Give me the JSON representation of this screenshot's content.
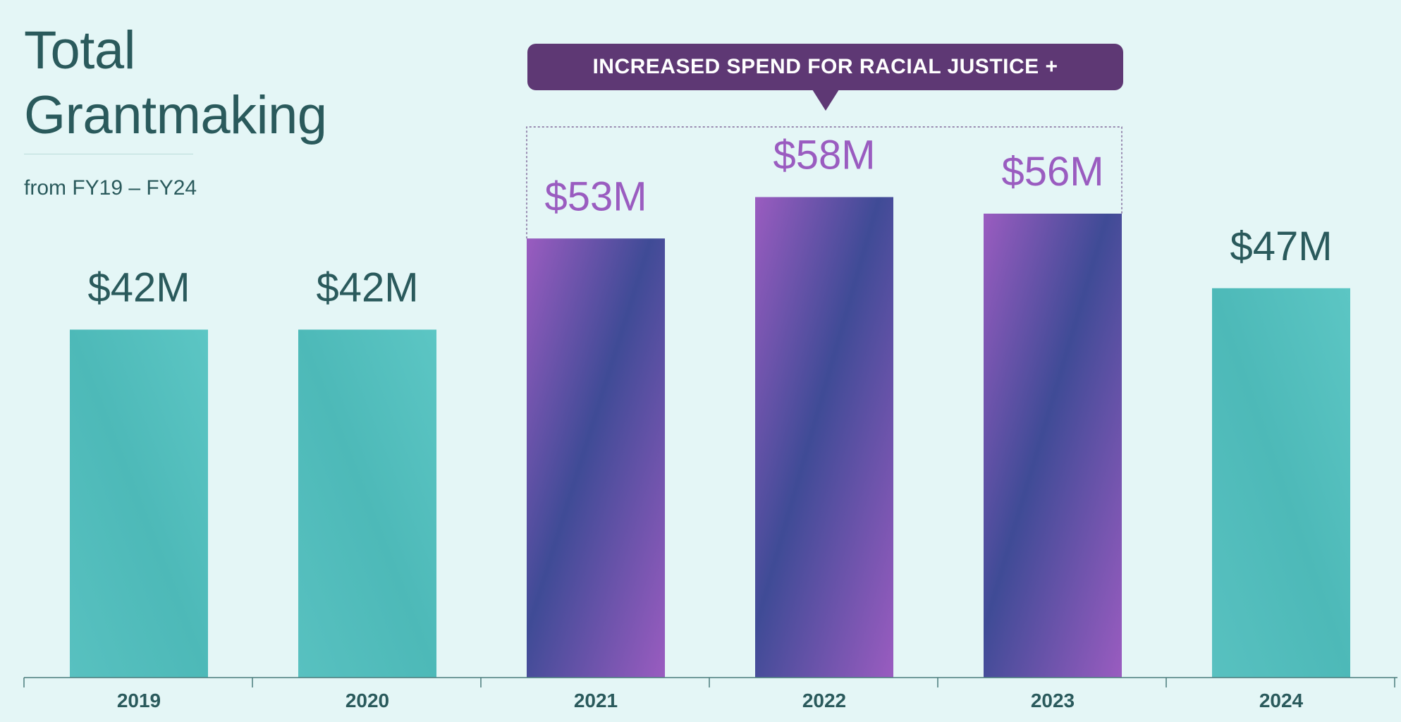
{
  "header": {
    "title": "Total\nGrantmaking",
    "subtitle": "from FY19 – FY24"
  },
  "callout": {
    "text": "INCREASED SPEND FOR RACIAL JUSTICE +",
    "color": "#5e3874"
  },
  "colors": {
    "teal": "#52bebd",
    "purple": "#9a5cc0",
    "purple_dark": "#3a4a94",
    "label_teal": "#2a5a5c",
    "label_purple": "#9a5cc0"
  },
  "chart_data": {
    "type": "bar",
    "title": "Total Grantmaking",
    "subtitle": "from FY19 – FY24",
    "categories": [
      "2019",
      "2020",
      "2021",
      "2022",
      "2023",
      "2024"
    ],
    "values": [
      42,
      42,
      53,
      58,
      56,
      47
    ],
    "value_labels": [
      "$42M",
      "$42M",
      "$53M",
      "$58M",
      "$56M",
      "$47M"
    ],
    "highlighted": [
      "2021",
      "2022",
      "2023"
    ],
    "highlight_label": "INCREASED SPEND FOR RACIAL JUSTICE +",
    "unit": "$M",
    "xlabel": "",
    "ylabel": "",
    "grid": false,
    "legend": "none"
  }
}
